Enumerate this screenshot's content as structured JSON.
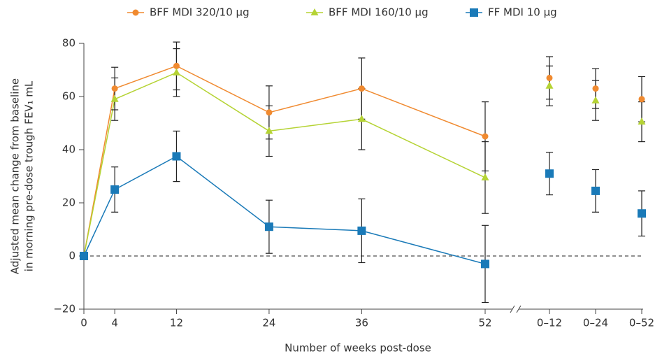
{
  "chart_data": [
    {
      "type": "line",
      "y_label": [
        "Adjusted mean change from baseline",
        "in morning pre-dose trough FEV₁ mL"
      ],
      "x_label": "Number of weeks post-dose",
      "x": [
        0,
        4,
        12,
        24,
        36,
        52
      ],
      "xlim": [
        0,
        52
      ],
      "xticks": [
        0,
        4,
        12,
        24,
        36,
        52
      ],
      "ylim": [
        -20,
        80
      ],
      "yticks": [
        {
          "value": -20,
          "label": "−20"
        },
        0,
        20,
        40,
        60,
        80
      ],
      "series": [
        {
          "name": "BFF MDI 320/10 µg",
          "color": "#f08a30",
          "marker": "circle",
          "values": [
            0,
            63,
            71.5,
            54,
            63,
            45
          ],
          "errors": [
            0,
            8,
            9,
            10,
            11.5,
            13
          ]
        },
        {
          "name": "BFF MDI 160/10 µg",
          "color": "#b5d334",
          "marker": "triangle",
          "values": [
            0,
            59,
            69,
            47,
            51.5,
            29.5
          ],
          "errors": [
            0,
            8,
            9,
            9.5,
            11.5,
            13.5
          ]
        },
        {
          "name": "FF MDI 10 µg",
          "color": "#1a7ab8",
          "marker": "square",
          "values": [
            0,
            25,
            37.5,
            11,
            9.5,
            -3
          ],
          "errors": [
            0,
            8.5,
            9.5,
            10,
            12,
            14.5
          ]
        }
      ]
    },
    {
      "type": "scatter",
      "categories": [
        "0–12",
        "0–24",
        "0–52"
      ],
      "series": [
        {
          "values": [
            67,
            63,
            59
          ],
          "errors": [
            8,
            7.5,
            8.5
          ]
        },
        {
          "values": [
            64,
            58.5,
            50.5
          ],
          "errors": [
            7.5,
            7.5,
            7.5
          ]
        },
        {
          "values": [
            31,
            24.5,
            16
          ],
          "errors": [
            8,
            8,
            8.5
          ]
        }
      ]
    }
  ]
}
